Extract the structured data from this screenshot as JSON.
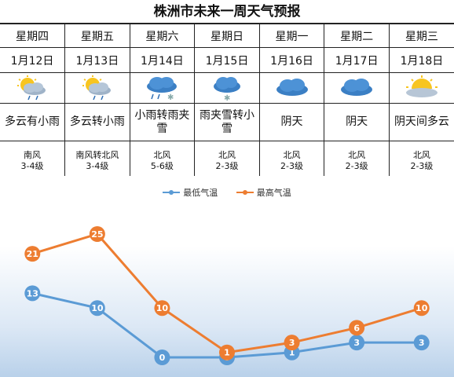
{
  "title": "株洲市未来一周天气预报",
  "days": [
    {
      "day": "星期四",
      "date": "1月12日",
      "icon": "partly-cloudy-light-rain",
      "cond": "多云有小雨",
      "wind": "南风",
      "level": "3-4级"
    },
    {
      "day": "星期五",
      "date": "1月13日",
      "icon": "partly-cloudy-light-rain",
      "cond": "多云转小雨",
      "wind": "南风转北风",
      "level": "3-4级"
    },
    {
      "day": "星期六",
      "date": "1月14日",
      "icon": "rain-and-snow",
      "cond": "小雨转雨夹雪",
      "wind": "北风",
      "level": "5-6级"
    },
    {
      "day": "星期日",
      "date": "1月15日",
      "icon": "light-snow",
      "cond": "雨夹雪转小雪",
      "wind": "北风",
      "level": "2-3级"
    },
    {
      "day": "星期一",
      "date": "1月16日",
      "icon": "overcast",
      "cond": "阴天",
      "wind": "北风",
      "level": "2-3级"
    },
    {
      "day": "星期二",
      "date": "1月17日",
      "icon": "overcast",
      "cond": "阴天",
      "wind": "北风",
      "level": "2-3级"
    },
    {
      "day": "星期三",
      "date": "1月18日",
      "icon": "partly-cloudy-sun",
      "cond": "阴天间多云",
      "wind": "北风",
      "level": "2-3级"
    }
  ],
  "chart_data": {
    "type": "line",
    "categories": [
      "星期四",
      "星期五",
      "星期六",
      "星期日",
      "星期一",
      "星期二",
      "星期三"
    ],
    "series": [
      {
        "name": "最低气温",
        "color": "#5b9bd5",
        "values": [
          13,
          10,
          0,
          0,
          1,
          3,
          3
        ]
      },
      {
        "name": "最高气温",
        "color": "#ed7d31",
        "values": [
          21,
          25,
          10,
          1,
          3,
          6,
          10
        ]
      }
    ],
    "ylim": [
      0,
      25
    ],
    "legend": "top-center",
    "grid": false
  }
}
